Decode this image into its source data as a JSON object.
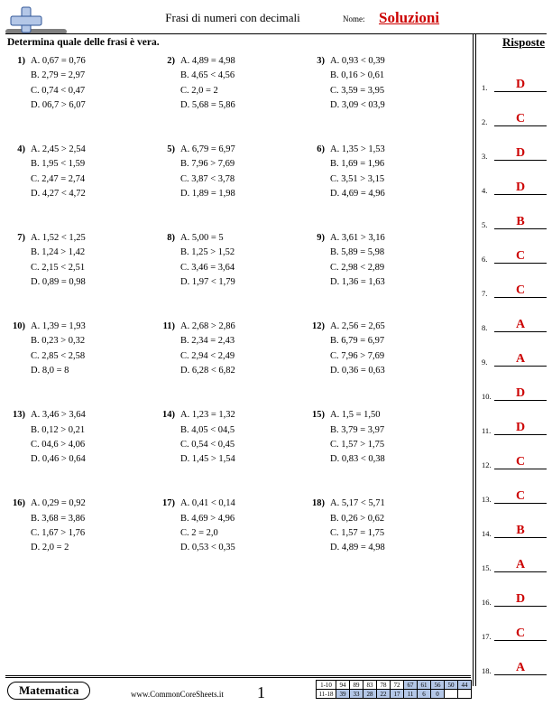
{
  "header": {
    "title": "Frasi di numeri con decimali",
    "name_label": "Nome:",
    "solutions": "Soluzioni",
    "instruction": "Determina quale delle frasi è vera.",
    "answers_header": "Risposte"
  },
  "footer": {
    "subject": "Matematica",
    "url": "www.CommonCoreSheets.it",
    "page": "1",
    "score_rows": [
      {
        "label": "1-10",
        "cells": [
          "94",
          "89",
          "83",
          "78",
          "72",
          "67",
          "61",
          "56",
          "50",
          "44"
        ],
        "shade_from": 5
      },
      {
        "label": "11-18",
        "cells": [
          "39",
          "33",
          "28",
          "22",
          "17",
          "11",
          "6",
          "0",
          "",
          ""
        ],
        "shade_from": 0,
        "shade_to": 7
      }
    ]
  },
  "questions": [
    [
      {
        "n": "1",
        "opts": [
          "A. 0,67 = 0,76",
          "B. 2,79 = 2,97",
          "C. 0,74 < 0,47",
          "D. 06,7 > 6,07"
        ]
      },
      {
        "n": "2",
        "opts": [
          "A. 4,89 = 4,98",
          "B. 4,65 < 4,56",
          "C. 2,0 = 2",
          "D. 5,68 = 5,86"
        ]
      },
      {
        "n": "3",
        "opts": [
          "A. 0,93 < 0,39",
          "B. 0,16 > 0,61",
          "C. 3,59 = 3,95",
          "D. 3,09 < 03,9"
        ]
      }
    ],
    [
      {
        "n": "4",
        "opts": [
          "A. 2,45 > 2,54",
          "B. 1,95 < 1,59",
          "C. 2,47 = 2,74",
          "D. 4,27 < 4,72"
        ]
      },
      {
        "n": "5",
        "opts": [
          "A. 6,79 = 6,97",
          "B. 7,96 > 7,69",
          "C. 3,87 < 3,78",
          "D. 1,89 = 1,98"
        ]
      },
      {
        "n": "6",
        "opts": [
          "A. 1,35 > 1,53",
          "B. 1,69 = 1,96",
          "C. 3,51 > 3,15",
          "D. 4,69 = 4,96"
        ]
      }
    ],
    [
      {
        "n": "7",
        "opts": [
          "A. 1,52 < 1,25",
          "B. 1,24 > 1,42",
          "C. 2,15 < 2,51",
          "D. 0,89 = 0,98"
        ]
      },
      {
        "n": "8",
        "opts": [
          "A. 5,00 = 5",
          "B. 1,25 > 1,52",
          "C. 3,46 = 3,64",
          "D. 1,97 < 1,79"
        ]
      },
      {
        "n": "9",
        "opts": [
          "A. 3,61 > 3,16",
          "B. 5,89 = 5,98",
          "C. 2,98 < 2,89",
          "D. 1,36 = 1,63"
        ]
      }
    ],
    [
      {
        "n": "10",
        "opts": [
          "A. 1,39 = 1,93",
          "B. 0,23 > 0,32",
          "C. 2,85 < 2,58",
          "D. 8,0 = 8"
        ]
      },
      {
        "n": "11",
        "opts": [
          "A. 2,68 > 2,86",
          "B. 2,34 = 2,43",
          "C. 2,94 < 2,49",
          "D. 6,28 < 6,82"
        ]
      },
      {
        "n": "12",
        "opts": [
          "A. 2,56 = 2,65",
          "B. 6,79 = 6,97",
          "C. 7,96 > 7,69",
          "D. 0,36 = 0,63"
        ]
      }
    ],
    [
      {
        "n": "13",
        "opts": [
          "A. 3,46 > 3,64",
          "B. 0,12 > 0,21",
          "C. 04,6 > 4,06",
          "D. 0,46 > 0,64"
        ]
      },
      {
        "n": "14",
        "opts": [
          "A. 1,23 = 1,32",
          "B. 4,05 < 04,5",
          "C. 0,54 < 0,45",
          "D. 1,45 > 1,54"
        ]
      },
      {
        "n": "15",
        "opts": [
          "A. 1,5 = 1,50",
          "B. 3,79 = 3,97",
          "C. 1,57 > 1,75",
          "D. 0,83 < 0,38"
        ]
      }
    ],
    [
      {
        "n": "16",
        "opts": [
          "A. 0,29 = 0,92",
          "B. 3,68 = 3,86",
          "C. 1,67 > 1,76",
          "D. 2,0 = 2"
        ]
      },
      {
        "n": "17",
        "opts": [
          "A. 0,41 < 0,14",
          "B. 4,69 > 4,96",
          "C. 2 = 2,0",
          "D. 0,53 < 0,35"
        ]
      },
      {
        "n": "18",
        "opts": [
          "A. 5,17 < 5,71",
          "B. 0,26 > 0,62",
          "C. 1,57 = 1,75",
          "D. 4,89 = 4,98"
        ]
      }
    ]
  ],
  "answers": [
    "D",
    "C",
    "D",
    "D",
    "B",
    "C",
    "C",
    "A",
    "A",
    "D",
    "D",
    "C",
    "C",
    "B",
    "A",
    "D",
    "C",
    "A"
  ]
}
